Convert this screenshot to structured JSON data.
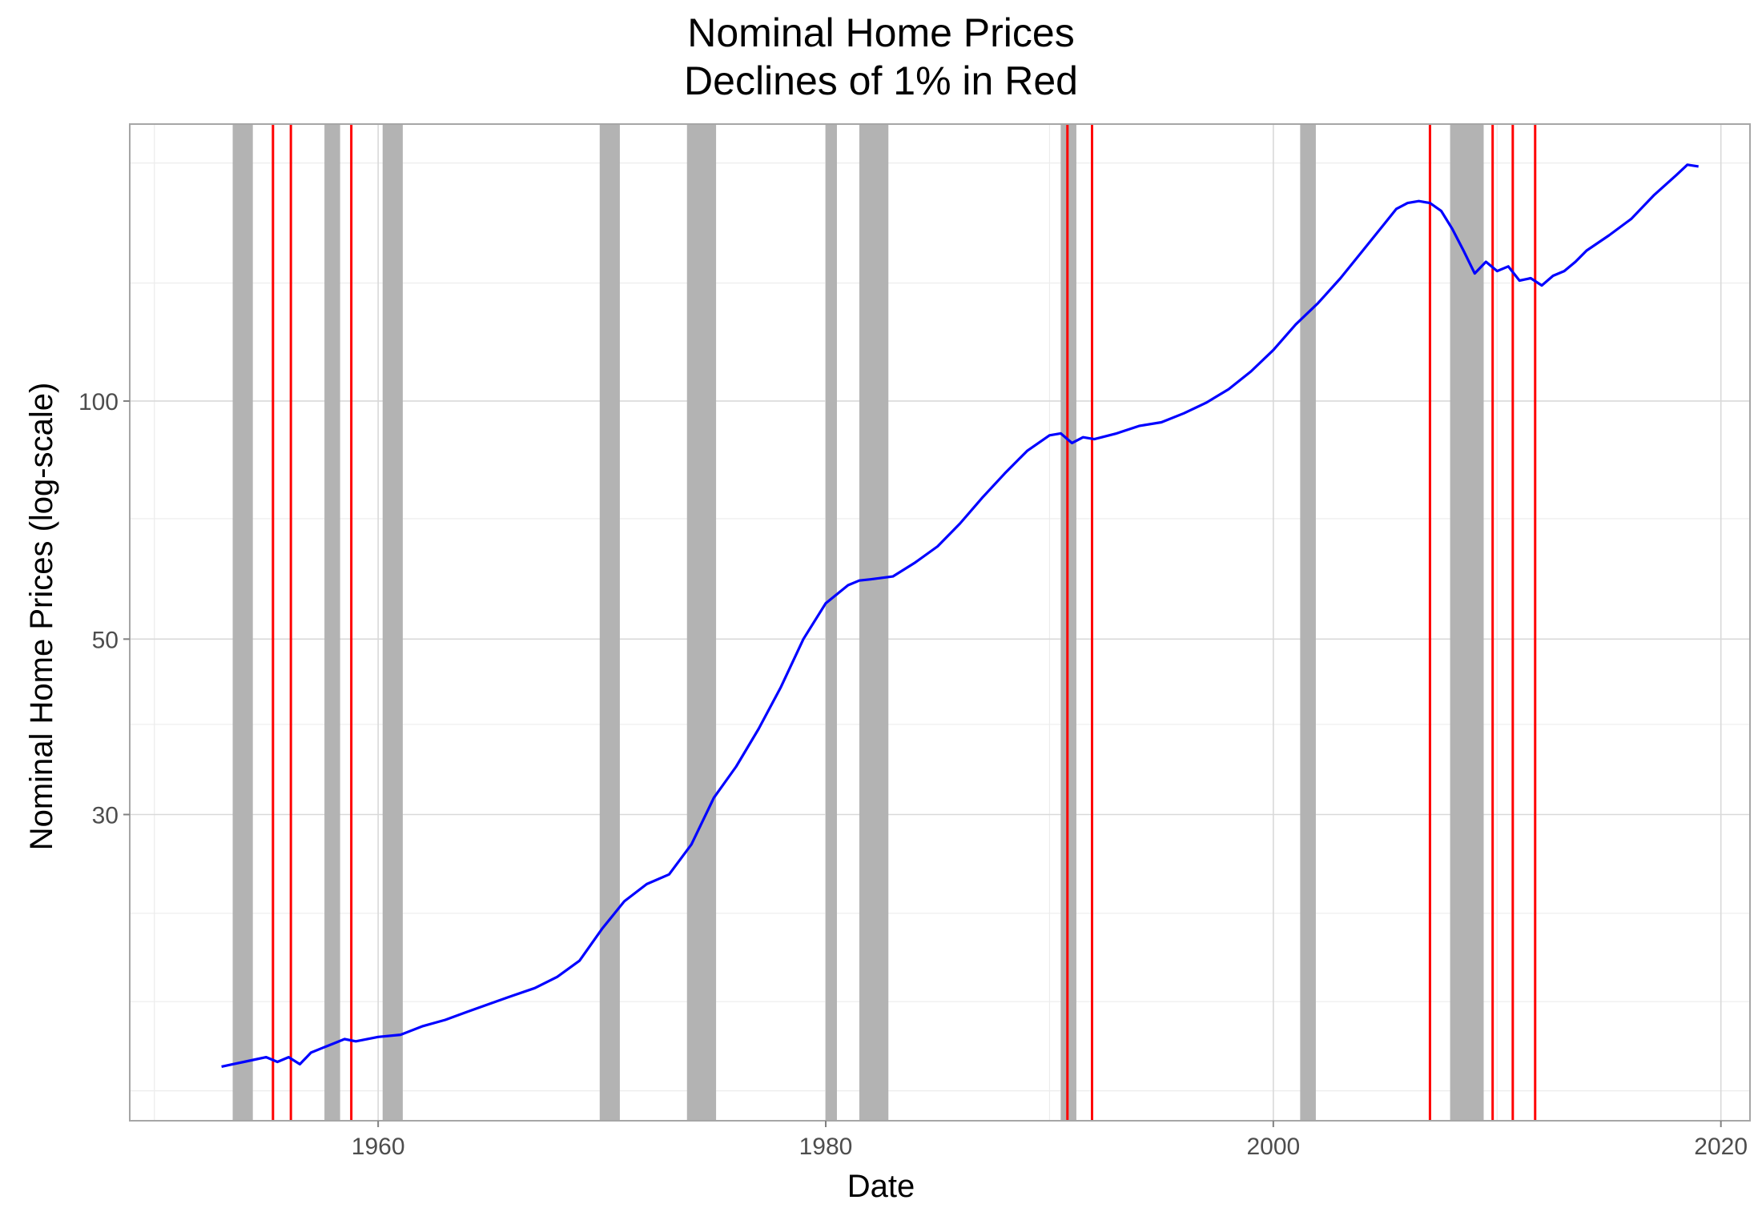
{
  "chart_data": {
    "type": "line",
    "title": "Nominal Home Prices",
    "subtitle": "Declines of 1% in Red",
    "xlabel": "Date",
    "ylabel": "Nominal Home Prices (log-scale)",
    "x_ticks": [
      "1960",
      "1980",
      "2000",
      "2020"
    ],
    "y_ticks": [
      "30",
      "50",
      "100"
    ],
    "y_scale": "log",
    "xlim": [
      1948.9,
      2021.3
    ],
    "ylim": [
      12.3,
      224
    ],
    "grid": true,
    "series_color": "#0000ff",
    "decline_color": "#ff0000",
    "recession_color": "#b3b3b3",
    "series": [
      {
        "x": [
          1953.0,
          1953.5,
          1954.0,
          1954.5,
          1955.0,
          1955.5,
          1956.0,
          1956.5,
          1957.0,
          1957.5,
          1958.0,
          1958.5,
          1959.0,
          1960.0,
          1961.0,
          1962.0,
          1963.0,
          1964.0,
          1965.0,
          1966.0,
          1967.0,
          1968.0,
          1969.0,
          1970.0,
          1971.0,
          1972.0,
          1973.0,
          1974.0,
          1975.0,
          1976.0,
          1977.0,
          1978.0,
          1979.0,
          1980.0,
          1981.0,
          1981.5,
          1982.0,
          1983.0,
          1984.0,
          1985.0,
          1986.0,
          1987.0,
          1988.0,
          1989.0,
          1990.0,
          1990.5,
          1991.0,
          1991.5,
          1992.0,
          1993.0,
          1994.0,
          1995.0,
          1996.0,
          1997.0,
          1998.0,
          1999.0,
          2000.0,
          2001.0,
          2002.0,
          2003.0,
          2004.0,
          2005.0,
          2005.5,
          2006.0,
          2006.5,
          2007.0,
          2007.5,
          2008.0,
          2008.5,
          2009.0,
          2009.5,
          2010.0,
          2010.5,
          2011.0,
          2011.5,
          2012.0,
          2012.5,
          2013.0,
          2013.5,
          2014.0,
          2015.0,
          2016.0,
          2017.0,
          2018.0,
          2018.5,
          2019.0
        ],
        "y": [
          14.4,
          14.5,
          14.6,
          14.7,
          14.8,
          14.6,
          14.8,
          14.5,
          15.0,
          15.2,
          15.4,
          15.6,
          15.5,
          15.7,
          15.8,
          16.2,
          16.5,
          16.9,
          17.3,
          17.7,
          18.1,
          18.7,
          19.6,
          21.5,
          23.3,
          24.5,
          25.2,
          27.5,
          31.5,
          34.5,
          38.5,
          43.5,
          50.0,
          55.5,
          58.5,
          59.3,
          59.5,
          60.0,
          62.5,
          65.5,
          70.0,
          75.5,
          81.0,
          86.5,
          90.5,
          91.0,
          88.5,
          90.0,
          89.5,
          91.0,
          93.0,
          94.0,
          96.5,
          99.5,
          103.5,
          109.0,
          116.0,
          125.0,
          133.0,
          143.0,
          155.0,
          168.0,
          175.0,
          178.0,
          179.0,
          178.0,
          174.0,
          165.0,
          155.0,
          145.0,
          150.0,
          146.0,
          148.0,
          142.0,
          143.0,
          140.0,
          144.0,
          146.0,
          150.0,
          155.0,
          162.0,
          170.0,
          182.0,
          193.0,
          199.0,
          198.0
        ]
      }
    ],
    "recession_bands": [
      [
        1953.5,
        1954.4
      ],
      [
        1957.6,
        1958.3
      ],
      [
        1960.2,
        1961.1
      ],
      [
        1969.9,
        1970.8
      ],
      [
        1973.8,
        1975.1
      ],
      [
        1980.0,
        1980.5
      ],
      [
        1981.5,
        1982.8
      ],
      [
        1990.5,
        1991.2
      ],
      [
        2001.2,
        2001.9
      ],
      [
        2007.9,
        2009.4
      ]
    ],
    "decline_markers": [
      1955.3,
      1956.1,
      1958.8,
      1990.8,
      1991.9,
      2007.0,
      2009.8,
      2010.7,
      2011.7
    ]
  }
}
